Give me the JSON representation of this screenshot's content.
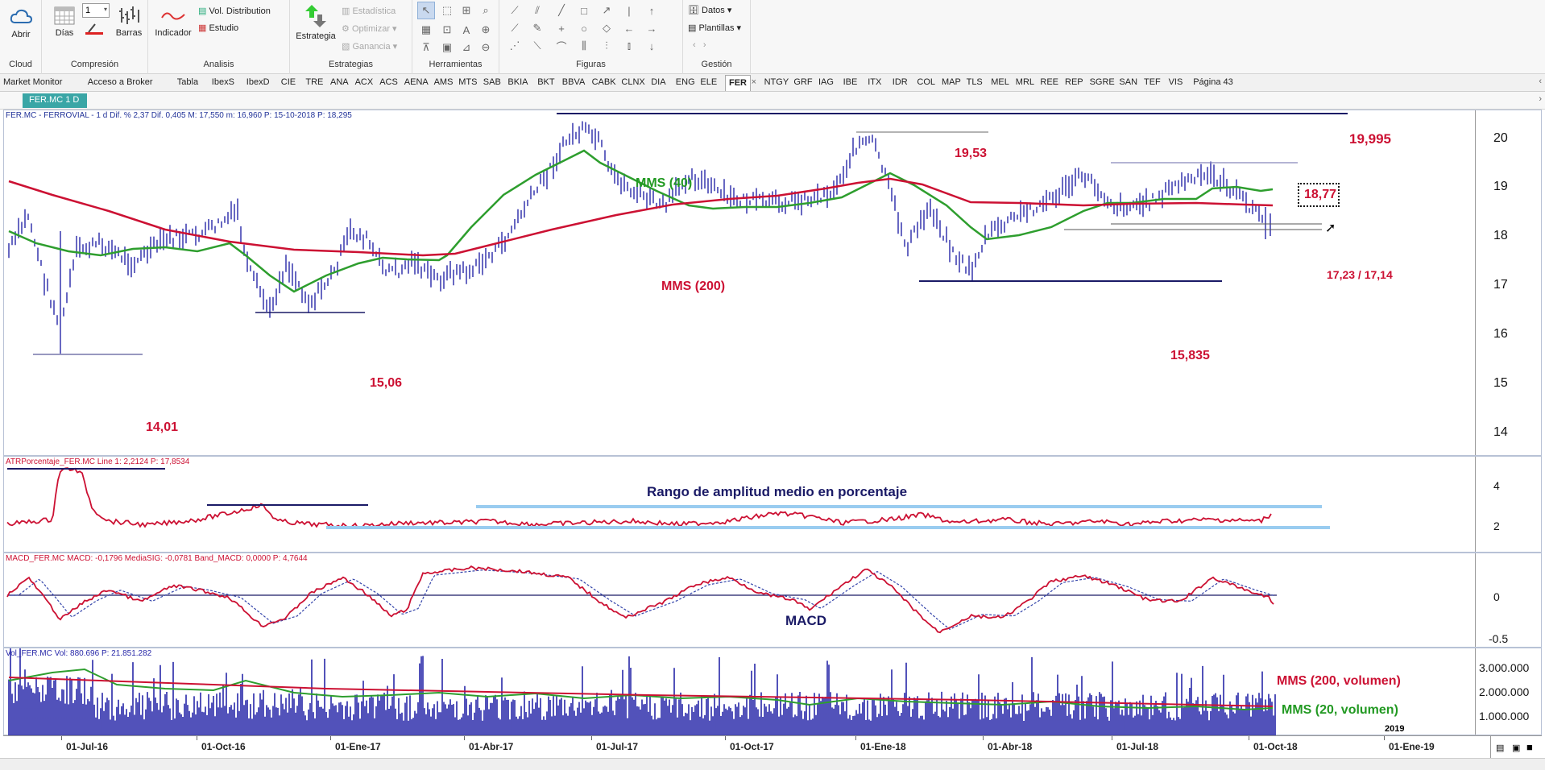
{
  "ribbon": {
    "cloud": {
      "open_label": "Abrir",
      "group_label": "Cloud"
    },
    "compression": {
      "days_label": "Días",
      "bars_label": "Barras",
      "spin_value": "1",
      "group_label": "Compresión"
    },
    "analysis": {
      "indicator_label": "Indicador",
      "vol_dist_label": "Vol. Distribution",
      "study_label": "Estudio",
      "group_label": "Analisis"
    },
    "strategies": {
      "strategy_label": "Estrategia",
      "statistics_label": "Estadística",
      "optimize_label": "Optimizar",
      "gain_label": "Ganancia",
      "group_label": "Estrategias"
    },
    "tools": {
      "group_label": "Herramientas"
    },
    "figures": {
      "group_label": "Figuras"
    },
    "management": {
      "data_label": "Datos",
      "templates_label": "Plantillas",
      "group_label": "Gestión"
    }
  },
  "tabs": [
    "Market Monitor",
    "Acceso a Broker",
    "Tabla",
    "IbexS",
    "IbexD",
    "CIE",
    "TRE",
    "ANA",
    "ACX",
    "ACS",
    "AENA",
    "AMS",
    "MTS",
    "SAB",
    "BKIA",
    "BKT",
    "BBVA",
    "CABK",
    "CLNX",
    "DIA",
    "ENG",
    "ELE",
    "FER",
    "NTGY",
    "GRF",
    "IAG",
    "IBE",
    "ITX",
    "IDR",
    "COL",
    "MAP",
    "TLS",
    "MEL",
    "MRL",
    "REE",
    "REP",
    "SGRE",
    "SAN",
    "TEF",
    "VIS",
    "Página 43"
  ],
  "active_tab": "FER",
  "tab_close": "×",
  "subtab_label": "FER.MC 1 D",
  "price_panel": {
    "header": "FER.MC - FERROVIAL - 1 d  Dif. % 2,37  Dif. 0,405  M: 17,550  m: 16,960  P: 15-10-2018  P: 18,295",
    "y_ticks": [
      "20",
      "19",
      "18",
      "17",
      "16",
      "15",
      "14"
    ],
    "annotations": {
      "high": "19,995",
      "second_high": "19,53",
      "range_top": "18,77",
      "supports": "17,23 / 17,14",
      "low_2018": "15,835",
      "low_oct16": "15,06",
      "low_jun16": "14,01",
      "mms40": "MMS (40)",
      "mms200": "MMS (200)"
    }
  },
  "atr_panel": {
    "header": "ATRPorcentaje_FER.MC  Line 1: 2,2124  P: 17,8534",
    "title": "Rango de amplitud medio en porcentaje",
    "y_ticks": [
      "4",
      "2"
    ]
  },
  "macd_panel": {
    "header": "MACD_FER.MC  MACD: -0,1796  MediaSIG: -0,0781  Band_MACD: 0,0000  P: 4,7644",
    "label": "MACD",
    "y_ticks": [
      "0",
      "-0.5"
    ]
  },
  "volume_panel": {
    "header": "Vol_FER.MC  Vol: 880.696  P: 21.851.282",
    "mms200": "MMS (200, volumen)",
    "mms20": "MMS (20, volumen)",
    "y_ticks": [
      "3.000.000",
      "2.000.000",
      "1.000.000"
    ],
    "year_marker": "2019"
  },
  "x_axis": [
    "01-Jul-16",
    "01-Oct-16",
    "01-Ene-17",
    "01-Abr-17",
    "01-Jul-17",
    "01-Oct-17",
    "01-Ene-18",
    "01-Abr-18",
    "01-Jul-18",
    "01-Oct-18",
    "01-Ene-19"
  ],
  "colors": {
    "price": "#2727a8",
    "mms40": "#2e9e2e",
    "mms200": "#cc1133",
    "level": "#1a1a66",
    "band": "#99ccf0",
    "accent_tab": "#3aa6a6"
  }
}
